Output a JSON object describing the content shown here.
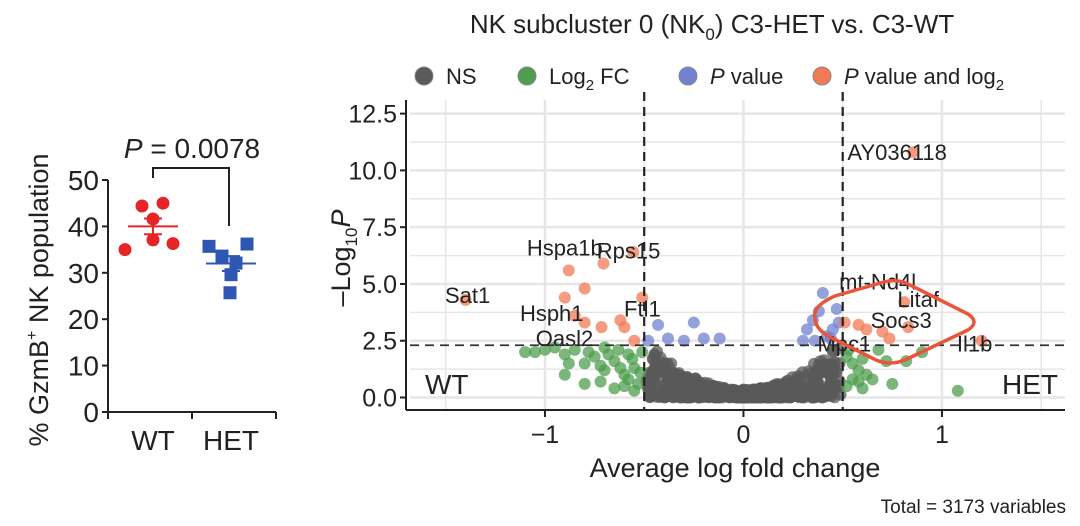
{
  "chart_data": [
    {
      "type": "scatter",
      "title": "",
      "ylabel": "% GzmB+ NK population",
      "ylabel_main": "% GzmB",
      "ylabel_sup": "+",
      "ylabel_rest": " NK population",
      "xlabel": "",
      "categories": [
        "WT",
        "HET"
      ],
      "ylim": [
        0,
        50
      ],
      "yticks": [
        "0",
        "10",
        "20",
        "30",
        "40",
        "50"
      ],
      "ytick_values": [
        0,
        10,
        20,
        30,
        40,
        50
      ],
      "series": [
        {
          "name": "WT",
          "color": "#e62626",
          "marker": "circle",
          "values": [
            44.4,
            45.0,
            41.6,
            37.1,
            35.0,
            36.3
          ],
          "mean": 40.0,
          "sem": 1.7
        },
        {
          "name": "HET",
          "color": "#2e57b3",
          "marker": "square",
          "values": [
            35.7,
            36.2,
            33.6,
            32.1,
            29.6,
            25.7
          ],
          "mean": 32.0,
          "sem": 1.6
        }
      ],
      "annotation": {
        "p_label": "P",
        "p_value": " = 0.0078"
      }
    },
    {
      "type": "scatter",
      "title_pre": "NK subcluster 0 (NK",
      "title_sub": "0",
      "title_post": ") C3-HET vs. C3-WT",
      "xlabel": "Average log fold change",
      "ylabel_pre": "–Log",
      "ylabel_sub": "10",
      "ylabel_p": "P",
      "xlim": [
        -1.68,
        1.62
      ],
      "ylim": [
        -0.55,
        13.1
      ],
      "xticks": [
        "−1",
        "0",
        "1"
      ],
      "xtick_values": [
        -1,
        0,
        1
      ],
      "yticks": [
        "0.0",
        "2.5",
        "5.0",
        "7.5",
        "10.0",
        "12.5"
      ],
      "ytick_values": [
        0,
        2.5,
        5,
        7.5,
        10,
        12.5
      ],
      "grid": true,
      "fc_cutoff": 0.5,
      "p_cutoff": 2.3,
      "corner_labels": {
        "left": "WT",
        "right": "HET"
      },
      "caption": "Total = 3173 variables",
      "legend": {
        "placement": "top",
        "items": [
          {
            "label": "NS",
            "sub": "",
            "post": "",
            "italic": false,
            "color": "#5a5a5a"
          },
          {
            "label": "Log",
            "sub": "2",
            "post": " FC",
            "italic": false,
            "color": "#4f9d4f"
          },
          {
            "label": "P",
            "sub": "",
            "post": " value",
            "italic": true,
            "color": "#7282cf"
          },
          {
            "label": "P",
            "sub": "2",
            "post": " value and log",
            "italic": true,
            "color": "#f07a55"
          }
        ]
      },
      "ns_count": 700,
      "colors": {
        "ns": "#5a5a5a",
        "fc": "#4f9d4f",
        "p": "#7282cf",
        "both": "#f07a55",
        "highlight": "#e8553a"
      },
      "fc_points": [
        [
          -1.05,
          2.0
        ],
        [
          -1.0,
          2.1
        ],
        [
          -0.95,
          2.2
        ],
        [
          -0.9,
          1.9
        ],
        [
          -0.85,
          2.1
        ],
        [
          -0.8,
          1.5
        ],
        [
          -0.78,
          2.0
        ],
        [
          -0.75,
          1.8
        ],
        [
          -0.72,
          1.4
        ],
        [
          -0.7,
          1.2
        ],
        [
          -0.68,
          1.9
        ],
        [
          -0.65,
          1.6
        ],
        [
          -0.62,
          1.3
        ],
        [
          -0.6,
          1.0
        ],
        [
          -0.58,
          0.8
        ],
        [
          -0.56,
          1.7
        ],
        [
          -0.55,
          1.3
        ],
        [
          -0.53,
          0.6
        ],
        [
          -0.52,
          1.1
        ],
        [
          -0.51,
          2.0
        ],
        [
          -0.9,
          1.0
        ],
        [
          -0.8,
          0.6
        ],
        [
          -0.72,
          0.7
        ],
        [
          -0.65,
          0.4
        ],
        [
          -0.6,
          0.5
        ],
        [
          -0.7,
          2.2
        ],
        [
          -0.63,
          2.1
        ],
        [
          -0.58,
          1.9
        ],
        [
          -1.1,
          2.0
        ],
        [
          -0.88,
          1.5
        ],
        [
          -0.55,
          0.3
        ],
        [
          0.52,
          1.8
        ],
        [
          0.55,
          1.5
        ],
        [
          0.58,
          1.2
        ],
        [
          0.6,
          1.7
        ],
        [
          0.55,
          0.8
        ],
        [
          0.62,
          1.0
        ],
        [
          0.52,
          0.5
        ],
        [
          0.58,
          0.7
        ],
        [
          0.65,
          0.8
        ],
        [
          0.68,
          2.1
        ],
        [
          0.72,
          1.6
        ],
        [
          0.75,
          0.6
        ],
        [
          0.82,
          1.6
        ],
        [
          0.9,
          2.0
        ],
        [
          1.08,
          0.3
        ],
        [
          0.53,
          2.1
        ],
        [
          0.6,
          0.4
        ]
      ],
      "p_points": [
        [
          -0.43,
          3.2
        ],
        [
          -0.38,
          2.6
        ],
        [
          -0.3,
          2.5
        ],
        [
          -0.25,
          3.3
        ],
        [
          -0.2,
          2.6
        ],
        [
          -0.12,
          2.6
        ],
        [
          -0.48,
          2.5
        ],
        [
          0.3,
          2.5
        ],
        [
          0.32,
          3.0
        ],
        [
          0.35,
          3.4
        ],
        [
          0.38,
          3.8
        ],
        [
          0.4,
          4.6
        ],
        [
          0.42,
          2.7
        ],
        [
          0.45,
          3.0
        ],
        [
          0.47,
          3.9
        ],
        [
          0.44,
          2.6
        ],
        [
          0.36,
          2.5
        ],
        [
          0.48,
          3.3
        ]
      ],
      "both_points": [
        [
          -0.8,
          4.8
        ],
        [
          -0.9,
          4.4
        ],
        [
          -0.8,
          3.3
        ],
        [
          -0.6,
          3.1
        ],
        [
          -0.55,
          2.5
        ],
        [
          -0.51,
          4.4
        ],
        [
          -0.555,
          6.4
        ],
        [
          0.58,
          3.2
        ],
        [
          0.62,
          3.0
        ],
        [
          0.7,
          2.9
        ]
      ],
      "labeled_genes": [
        {
          "gene": "AY036118",
          "x": 0.855,
          "y": 10.8
        },
        {
          "gene": "Rps15",
          "x": -0.705,
          "y": 5.9
        },
        {
          "gene": "Hspa1b",
          "x": -0.88,
          "y": 5.6
        },
        {
          "gene": "Sat1",
          "x": -1.4,
          "y": 4.3
        },
        {
          "gene": "Hsph1",
          "x": -0.85,
          "y": 3.6
        },
        {
          "gene": "Oasl2",
          "x": -0.715,
          "y": 3.1
        },
        {
          "gene": "Ftl1",
          "x": -0.62,
          "y": 3.4
        },
        {
          "gene": "mt-Nd4l",
          "x": 0.51,
          "y": 3.3
        },
        {
          "gene": "Litaf",
          "x": 0.81,
          "y": 4.2
        },
        {
          "gene": "Socs3",
          "x": 0.83,
          "y": 3.1
        },
        {
          "gene": "Mpc1",
          "x": 0.735,
          "y": 2.6
        },
        {
          "gene": "Il1b",
          "x": 1.2,
          "y": 2.5
        }
      ]
    }
  ]
}
